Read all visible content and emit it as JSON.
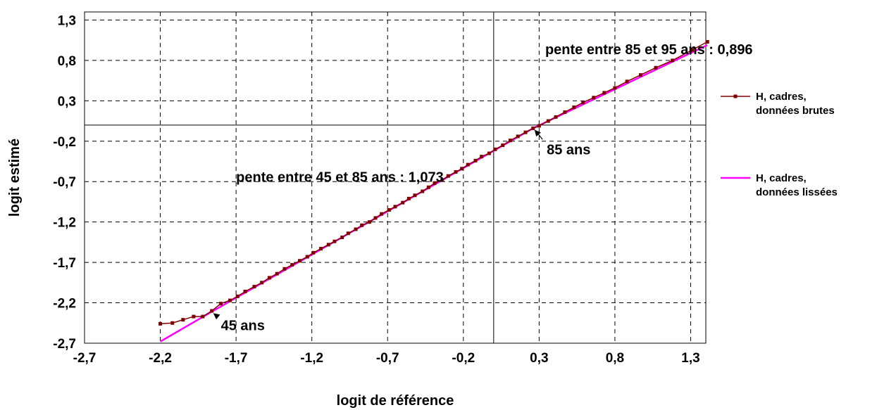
{
  "chart_data": {
    "type": "line",
    "title": "",
    "xlabel": "logit de référence",
    "ylabel": "logit estimé",
    "xlim": [
      -2.7,
      1.4
    ],
    "ylim": [
      -2.7,
      1.4
    ],
    "x_ticks": [
      -2.7,
      -2.2,
      -1.7,
      -1.2,
      -0.7,
      -0.2,
      0.3,
      0.8,
      1.3
    ],
    "y_ticks": [
      -2.7,
      -2.2,
      -1.7,
      -1.2,
      -0.7,
      -0.2,
      0.3,
      0.8,
      1.3
    ],
    "x_tick_labels": [
      "-2,7",
      "-2,2",
      "-1,7",
      "-1,2",
      "-0,7",
      "-0,2",
      "0,3",
      "0,8",
      "1,3"
    ],
    "y_tick_labels": [
      "-2,7",
      "-2,2",
      "-1,7",
      "-1,2",
      "-0,7",
      "-0,2",
      "0,3",
      "0,8",
      "1,3"
    ],
    "grid": true,
    "grid_style": "dashed",
    "reference_lines": {
      "x": 0,
      "y": 0
    },
    "legend_position": "right",
    "series": [
      {
        "name": "H, cadres,\ndonnées brutes",
        "color": "#800000",
        "markers": true,
        "x": [
          -2.2,
          -2.12,
          -2.05,
          -1.98,
          -1.92,
          -1.86,
          -1.8,
          -1.74,
          -1.69,
          -1.64,
          -1.58,
          -1.53,
          -1.48,
          -1.43,
          -1.38,
          -1.33,
          -1.28,
          -1.23,
          -1.19,
          -1.14,
          -1.09,
          -1.05,
          -1.0,
          -0.96,
          -0.91,
          -0.87,
          -0.82,
          -0.78,
          -0.74,
          -0.69,
          -0.65,
          -0.6,
          -0.56,
          -0.52,
          -0.47,
          -0.43,
          -0.39,
          -0.34,
          -0.3,
          -0.25,
          -0.21,
          -0.17,
          -0.12,
          -0.08,
          -0.03,
          0.01,
          0.06,
          0.11,
          0.16,
          0.21,
          0.26,
          0.3,
          0.36,
          0.41,
          0.47,
          0.53,
          0.59,
          0.66,
          0.73,
          0.8,
          0.88,
          0.97,
          1.07,
          1.18,
          1.31,
          1.41
        ],
        "y": [
          -2.46,
          -2.45,
          -2.41,
          -2.37,
          -2.37,
          -2.3,
          -2.21,
          -2.17,
          -2.12,
          -2.06,
          -2.0,
          -1.95,
          -1.89,
          -1.84,
          -1.78,
          -1.73,
          -1.68,
          -1.63,
          -1.58,
          -1.53,
          -1.48,
          -1.44,
          -1.39,
          -1.34,
          -1.29,
          -1.24,
          -1.2,
          -1.15,
          -1.1,
          -1.05,
          -1.01,
          -0.96,
          -0.91,
          -0.87,
          -0.82,
          -0.77,
          -0.72,
          -0.68,
          -0.63,
          -0.58,
          -0.54,
          -0.49,
          -0.44,
          -0.39,
          -0.35,
          -0.3,
          -0.25,
          -0.19,
          -0.14,
          -0.09,
          -0.04,
          -0.01,
          0.05,
          0.1,
          0.16,
          0.22,
          0.28,
          0.34,
          0.4,
          0.46,
          0.54,
          0.62,
          0.71,
          0.8,
          0.93,
          1.03
        ]
      },
      {
        "name": "H, cadres,\ndonnées lissées",
        "color": "#ff00ff",
        "markers": false,
        "x": [
          -2.2,
          -1.86,
          0.26,
          1.41
        ],
        "y": [
          -2.68,
          -2.31,
          -0.04,
          0.99
        ]
      }
    ],
    "annotations": [
      {
        "text": "pente entre 85 et 95 ans : 0,896",
        "x": 0.34,
        "y": 0.94
      },
      {
        "text": "pente entre 45 et 85 ans : 1,073",
        "x": -1.7,
        "y": -0.64
      },
      {
        "text": "85 ans",
        "x": 0.35,
        "y": -0.3,
        "arrow_to": {
          "x": 0.26,
          "y": -0.04
        }
      },
      {
        "text": "45 ans",
        "x": -1.8,
        "y": -2.48,
        "arrow_to": {
          "x": -1.86,
          "y": -2.31
        }
      }
    ]
  }
}
